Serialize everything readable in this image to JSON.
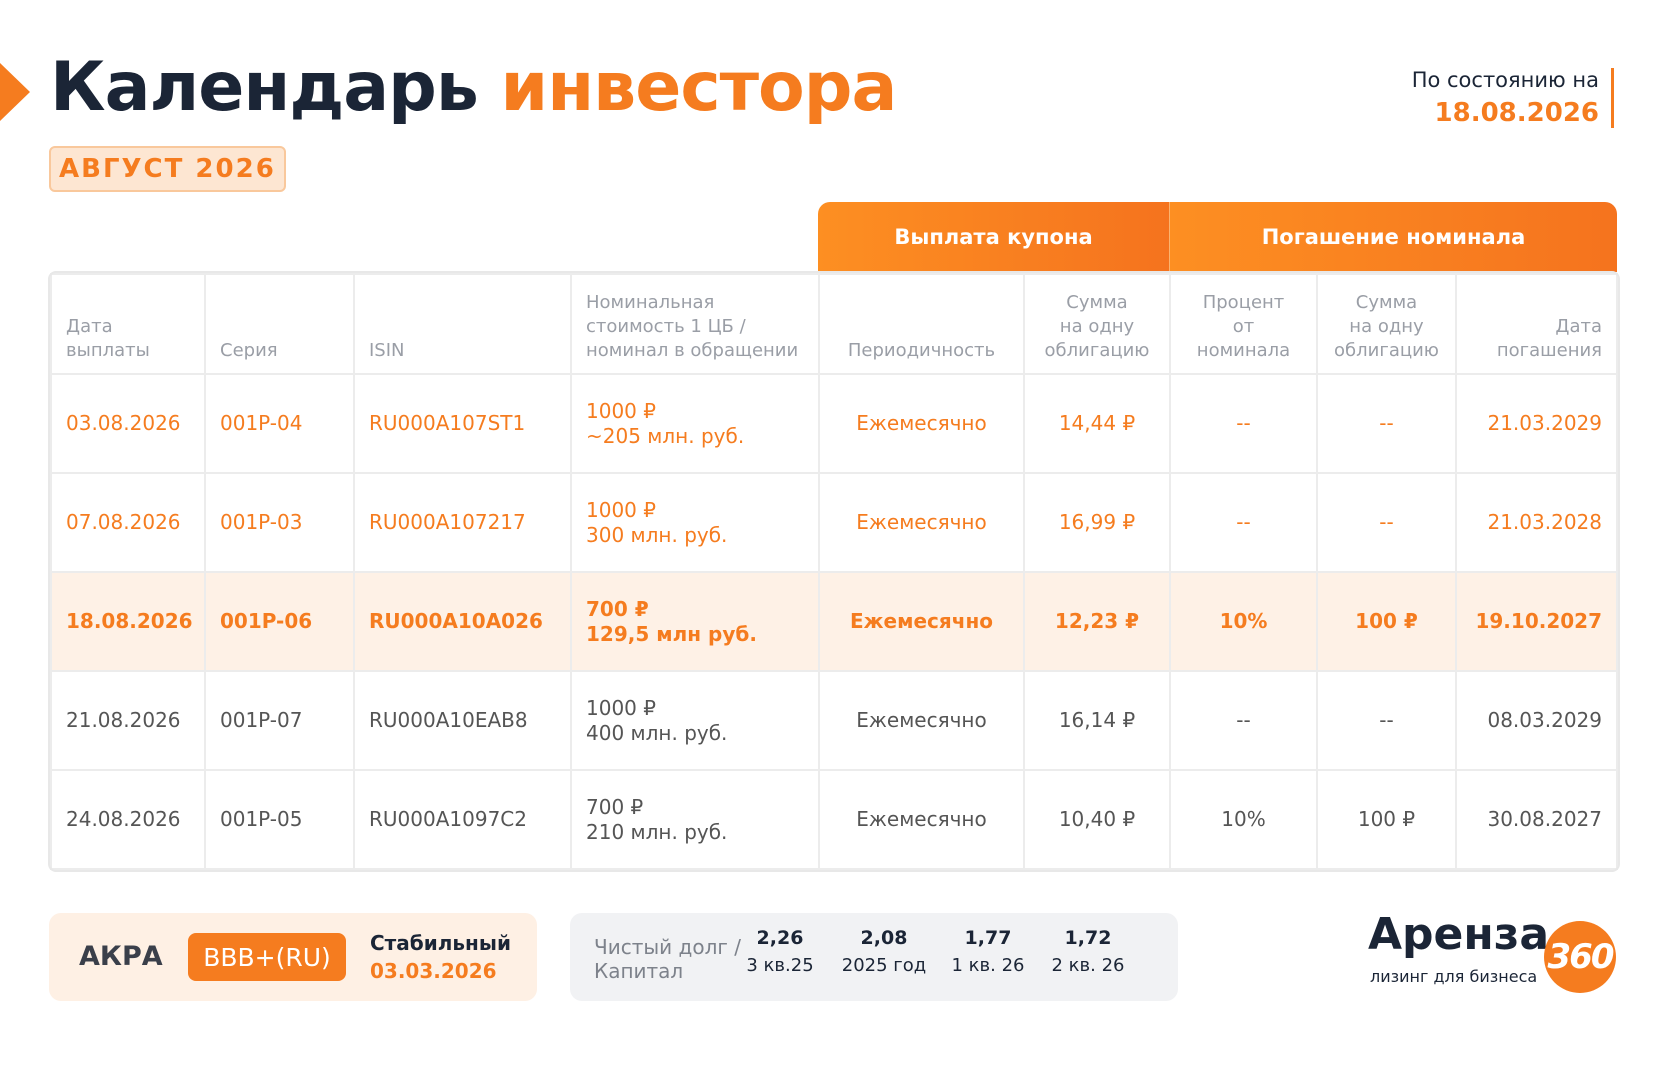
{
  "header": {
    "title_dark": "Календарь",
    "title_accent": "инвестора",
    "month": "АВГУСТ 2026",
    "status_label": "По состоянию на",
    "status_date": "18.08.2026"
  },
  "table": {
    "group_headers": [
      "Выплата купона",
      "Погашение номинала"
    ],
    "columns": [
      "Дата\nвыплаты",
      "Серия",
      "ISIN",
      "Номинальная\nстоимость 1 ЦБ /\nноминал в обращении",
      "Периодичность",
      "Сумма\nна одну\nоблигацию",
      "Процент\nот номинала",
      "Сумма\nна одну\nоблигацию",
      "Дата\nпогашения"
    ],
    "rows": [
      {
        "accent": true,
        "highlight": false,
        "cells": [
          "03.08.2026",
          "001P-04",
          "RU000A107ST1",
          "1000 ₽\n~205 млн. руб.",
          "Ежемесячно",
          "14,44 ₽",
          "--",
          "--",
          "21.03.2029"
        ]
      },
      {
        "accent": true,
        "highlight": false,
        "cells": [
          "07.08.2026",
          "001P-03",
          "RU000A107217",
          "1000 ₽\n300 млн. руб.",
          "Ежемесячно",
          "16,99 ₽",
          "--",
          "--",
          "21.03.2028"
        ]
      },
      {
        "accent": true,
        "highlight": true,
        "cells": [
          "18.08.2026",
          "001P-06",
          "RU000A10A026",
          "700 ₽\n129,5 млн руб.",
          "Ежемесячно",
          "12,23 ₽",
          "10%",
          "100 ₽",
          "19.10.2027"
        ]
      },
      {
        "accent": false,
        "highlight": false,
        "cells": [
          "21.08.2026",
          "001P-07",
          "RU000A10EAB8",
          "1000 ₽\n400 млн. руб.",
          "Ежемесячно",
          "16,14 ₽",
          "--",
          "--",
          "08.03.2029"
        ]
      },
      {
        "accent": false,
        "highlight": false,
        "cells": [
          "24.08.2026",
          "001P-05",
          "RU000A1097C2",
          "700 ₽\n210 млн. руб.",
          "Ежемесячно",
          "10,40 ₽",
          "10%",
          "100 ₽",
          "30.08.2027"
        ]
      }
    ]
  },
  "rating": {
    "agency": "АКРА",
    "grade": "BBB+(RU)",
    "outlook": "Стабильный",
    "date": "03.03.2026"
  },
  "debt": {
    "label": "Чистый долг /\nКапитал",
    "items": [
      {
        "value": "2,26",
        "period": "3 кв.25"
      },
      {
        "value": "2,08",
        "period": "2025 год"
      },
      {
        "value": "1,77",
        "period": "1 кв. 26"
      },
      {
        "value": "1,72",
        "period": "2 кв. 26"
      }
    ]
  },
  "logo": {
    "name": "Аренза",
    "number": "360",
    "tagline": "лизинг для бизнеса"
  }
}
